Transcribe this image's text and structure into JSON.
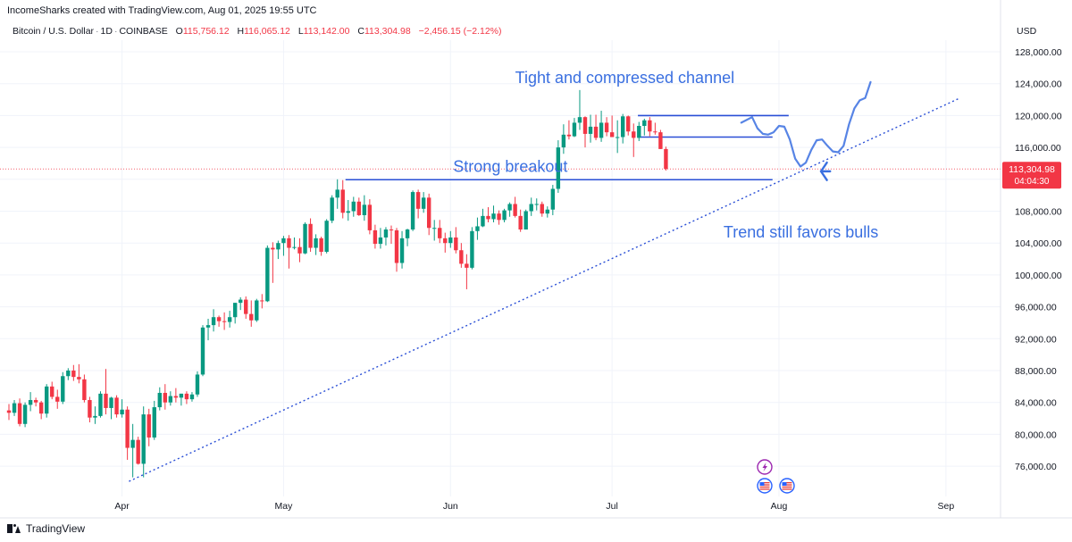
{
  "header": {
    "caption": "IncomeSharks created with TradingView.com, Aug 01, 2025 19:55 UTC",
    "symbol": "Bitcoin / U.S. Dollar",
    "interval": "1D",
    "exchange": "COINBASE",
    "open_label": "O",
    "open": "115,756.12",
    "high_label": "H",
    "high": "116,065.12",
    "low_label": "L",
    "low": "113,142.00",
    "close_label": "C",
    "close": "113,304.98",
    "change": "−2,456.15 (−2.12%)"
  },
  "currency": "USD",
  "price_tag": {
    "price": "113,304.98",
    "countdown": "04:04:30"
  },
  "footer": {
    "brand": "TradingView"
  },
  "colors": {
    "up": "#089981",
    "down": "#f23645",
    "annotation": "#3a6fe0",
    "trendline": "#2a4fd6"
  },
  "chart_data": {
    "type": "candlestick",
    "ylim": [
      72000,
      130000
    ],
    "yticks": [
      "128,000.00",
      "124,000.00",
      "120,000.00",
      "116,000.00",
      "112,000.00",
      "108,000.00",
      "104,000.00",
      "100,000.00",
      "96,000.00",
      "92,000.00",
      "88,000.00",
      "84,000.00",
      "80,000.00",
      "76,000.00"
    ],
    "ytick_values": [
      128000,
      124000,
      120000,
      116000,
      112000,
      108000,
      104000,
      100000,
      96000,
      92000,
      88000,
      84000,
      80000,
      76000
    ],
    "x_start": "2025-03-11",
    "xticks": [
      {
        "label": "Apr",
        "date": "2025-04-01"
      },
      {
        "label": "May",
        "date": "2025-05-01"
      },
      {
        "label": "Jun",
        "date": "2025-06-01"
      },
      {
        "label": "Jul",
        "date": "2025-07-01"
      },
      {
        "label": "Aug",
        "date": "2025-08-01"
      },
      {
        "label": "Sep",
        "date": "2025-09-01"
      }
    ],
    "candles": [
      [
        83000,
        83800,
        81800,
        82700
      ],
      [
        82700,
        84300,
        82300,
        83900
      ],
      [
        83900,
        84500,
        81000,
        81300
      ],
      [
        81300,
        84000,
        80900,
        83700
      ],
      [
        83700,
        85300,
        82900,
        84300
      ],
      [
        84300,
        84600,
        83500,
        84000
      ],
      [
        84000,
        84200,
        81900,
        82600
      ],
      [
        82600,
        86300,
        82100,
        86000
      ],
      [
        86000,
        86600,
        84400,
        84700
      ],
      [
        84700,
        85600,
        83200,
        84100
      ],
      [
        84100,
        87800,
        83800,
        87300
      ],
      [
        87300,
        88300,
        86800,
        88000
      ],
      [
        88000,
        88700,
        86700,
        87200
      ],
      [
        87200,
        88800,
        86400,
        86900
      ],
      [
        86900,
        87500,
        84000,
        84300
      ],
      [
        84300,
        84700,
        81500,
        82100
      ],
      [
        82100,
        83500,
        81300,
        82300
      ],
      [
        82300,
        85400,
        82100,
        85100
      ],
      [
        85100,
        88200,
        82500,
        83300
      ],
      [
        83300,
        84700,
        81900,
        84600
      ],
      [
        84600,
        84900,
        82100,
        82500
      ],
      [
        82500,
        84400,
        82100,
        83100
      ],
      [
        83100,
        83500,
        76800,
        78300
      ],
      [
        78300,
        81300,
        74600,
        79300
      ],
      [
        79300,
        79700,
        76200,
        76300
      ],
      [
        76300,
        83500,
        74600,
        82500
      ],
      [
        82500,
        83200,
        78500,
        79600
      ],
      [
        79600,
        84200,
        79300,
        83400
      ],
      [
        83400,
        85900,
        83000,
        85200
      ],
      [
        85200,
        86300,
        83100,
        84000
      ],
      [
        84000,
        85400,
        83600,
        84800
      ],
      [
        84800,
        85800,
        84000,
        84600
      ],
      [
        84600,
        85100,
        83600,
        85100
      ],
      [
        85100,
        85400,
        83800,
        84400
      ],
      [
        84400,
        85300,
        84100,
        85000
      ],
      [
        85000,
        87900,
        84700,
        87500
      ],
      [
        87500,
        93700,
        87300,
        93400
      ],
      [
        93400,
        94500,
        91800,
        93700
      ],
      [
        93700,
        95700,
        92900,
        94700
      ],
      [
        94700,
        94900,
        93500,
        94200
      ],
      [
        94200,
        95300,
        93100,
        94100
      ],
      [
        94100,
        95500,
        93400,
        94700
      ],
      [
        94700,
        96500,
        93900,
        96500
      ],
      [
        96500,
        97200,
        95600,
        96900
      ],
      [
        96900,
        97300,
        94500,
        95100
      ],
      [
        95100,
        96800,
        93500,
        94300
      ],
      [
        94300,
        97000,
        94100,
        96800
      ],
      [
        96800,
        97600,
        95800,
        96700
      ],
      [
        96700,
        103700,
        96600,
        103400
      ],
      [
        103400,
        104100,
        99000,
        103200
      ],
      [
        103200,
        104300,
        102000,
        104000
      ],
      [
        104000,
        104900,
        102400,
        104600
      ],
      [
        104600,
        105000,
        100800,
        103400
      ],
      [
        103400,
        104700,
        103200,
        103500
      ],
      [
        103500,
        104600,
        101600,
        102700
      ],
      [
        102700,
        106600,
        102600,
        106400
      ],
      [
        106400,
        107100,
        102900,
        103400
      ],
      [
        103400,
        105100,
        102500,
        104600
      ],
      [
        104600,
        104800,
        102400,
        102900
      ],
      [
        102900,
        107000,
        102700,
        106800
      ],
      [
        106800,
        110000,
        106500,
        109700
      ],
      [
        109700,
        112000,
        108300,
        110700
      ],
      [
        110700,
        111900,
        107100,
        107800
      ],
      [
        107800,
        109400,
        106800,
        108000
      ],
      [
        108000,
        109800,
        107300,
        109200
      ],
      [
        109200,
        109700,
        107400,
        107500
      ],
      [
        107500,
        110000,
        106800,
        108800
      ],
      [
        108800,
        109500,
        105100,
        105600
      ],
      [
        105600,
        106300,
        103300,
        103900
      ],
      [
        103900,
        105900,
        103300,
        104700
      ],
      [
        104700,
        106000,
        103700,
        105700
      ],
      [
        105700,
        106200,
        103900,
        105600
      ],
      [
        105600,
        105900,
        100400,
        101500
      ],
      [
        101500,
        105500,
        100800,
        104600
      ],
      [
        104600,
        105800,
        103600,
        105700
      ],
      [
        105700,
        110600,
        105500,
        110400
      ],
      [
        110400,
        110700,
        107100,
        108300
      ],
      [
        108300,
        110400,
        107800,
        109700
      ],
      [
        109700,
        110200,
        105000,
        105900
      ],
      [
        105900,
        106900,
        104300,
        105900
      ],
      [
        105900,
        106900,
        104000,
        104600
      ],
      [
        104600,
        105300,
        102800,
        104000
      ],
      [
        104000,
        105500,
        103400,
        104700
      ],
      [
        104700,
        106000,
        102700,
        103100
      ],
      [
        103100,
        104000,
        100900,
        101400
      ],
      [
        101400,
        102600,
        98200,
        100900
      ],
      [
        100900,
        106000,
        100700,
        105500
      ],
      [
        105500,
        107200,
        104400,
        106100
      ],
      [
        106100,
        108300,
        106000,
        107400
      ],
      [
        107400,
        108500,
        106600,
        107000
      ],
      [
        107000,
        108700,
        106600,
        107700
      ],
      [
        107700,
        108100,
        106300,
        106900
      ],
      [
        106900,
        108300,
        106600,
        108100
      ],
      [
        108100,
        109100,
        107300,
        108900
      ],
      [
        108900,
        109800,
        107200,
        107400
      ],
      [
        107400,
        108200,
        105400,
        105700
      ],
      [
        105700,
        108200,
        105700,
        108000
      ],
      [
        108000,
        109700,
        107400,
        108900
      ],
      [
        108900,
        109600,
        108100,
        108900
      ],
      [
        108900,
        109200,
        107300,
        107700
      ],
      [
        107700,
        108600,
        107200,
        108200
      ],
      [
        108200,
        111300,
        107500,
        110800
      ],
      [
        110800,
        116900,
        110300,
        116000
      ],
      [
        116000,
        118900,
        115200,
        117600
      ],
      [
        117600,
        119400,
        117000,
        117400
      ],
      [
        117400,
        119700,
        117300,
        119100
      ],
      [
        119100,
        123200,
        118200,
        119800
      ],
      [
        119800,
        119900,
        116000,
        117700
      ],
      [
        117700,
        120100,
        116600,
        118600
      ],
      [
        118600,
        120100,
        116900,
        117200
      ],
      [
        117200,
        120600,
        116700,
        119100
      ],
      [
        119100,
        119800,
        117400,
        117900
      ],
      [
        117900,
        120000,
        117300,
        117300
      ],
      [
        117300,
        119400,
        115300,
        117300
      ],
      [
        117300,
        120200,
        116500,
        119900
      ],
      [
        119900,
        120000,
        117500,
        118000
      ],
      [
        118000,
        119000,
        114800,
        117200
      ],
      [
        117200,
        119200,
        116800,
        118700
      ],
      [
        118700,
        119600,
        117500,
        119400
      ],
      [
        119400,
        119800,
        117400,
        118000
      ],
      [
        118000,
        119100,
        117600,
        117900
      ],
      [
        117900,
        118200,
        115800,
        115800
      ],
      [
        115800,
        116100,
        113100,
        113300
      ]
    ]
  },
  "annotations": {
    "channel_label": "Tight and compressed channel",
    "breakout_label": "Strong breakout",
    "trend_label": "Trend still favors bulls"
  }
}
